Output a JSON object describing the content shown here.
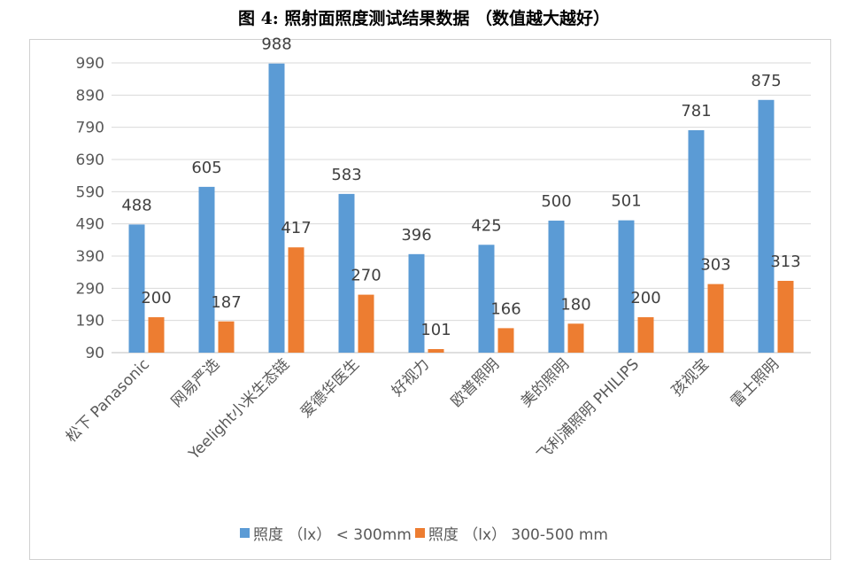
{
  "chart_data": {
    "type": "bar",
    "title": "图 4: 照射面照度测试结果数据 （数值越大越好）",
    "categories": [
      "松下 Panasonic",
      "网易严选",
      "Yeelight小米生态链",
      "爱德华医生",
      "好视力",
      "欧普照明",
      "美的照明",
      "飞利浦照明 PHILIPS",
      "孩视宝",
      "雷士照明"
    ],
    "series": [
      {
        "name": "照度 （lx） < 300mm",
        "color": "#5b9bd5",
        "values": [
          488,
          605,
          988,
          583,
          396,
          425,
          500,
          501,
          781,
          875
        ]
      },
      {
        "name": "照度 （lx） 300-500 mm",
        "color": "#ed7d31",
        "values": [
          200,
          187,
          417,
          270,
          101,
          166,
          180,
          200,
          303,
          313
        ]
      }
    ],
    "highlight_label_color": "#ff0000",
    "highlight_labels": [
      {
        "series": 1,
        "index": 4
      }
    ],
    "y_ticks": [
      90,
      190,
      290,
      390,
      490,
      590,
      690,
      790,
      890,
      990
    ],
    "ylim": [
      90,
      990
    ],
    "grid": true,
    "legend_position": "bottom"
  }
}
